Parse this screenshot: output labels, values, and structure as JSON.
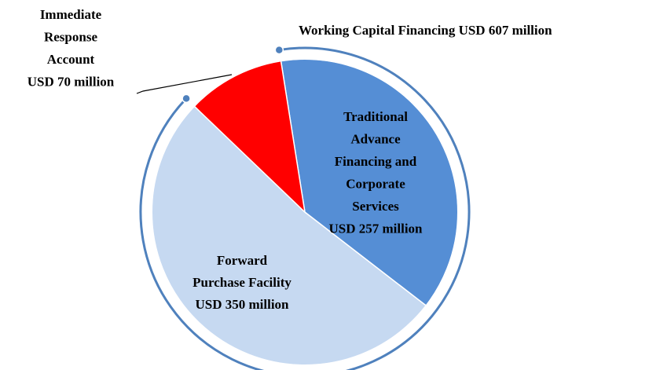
{
  "chart_data": {
    "type": "pie",
    "categories": [
      "Traditional Advance Financing and Corporate Services",
      "Forward Purchase Facility",
      "Immediate Response Account"
    ],
    "values": [
      257,
      350,
      70
    ],
    "value_labels": [
      "USD 257 million",
      "USD 350 million",
      "USD 70 million"
    ],
    "colors": [
      "#558ed5",
      "#c6d9f1",
      "#ff0000"
    ],
    "annotation": "Working Capital Financing USD 607 million"
  }
}
